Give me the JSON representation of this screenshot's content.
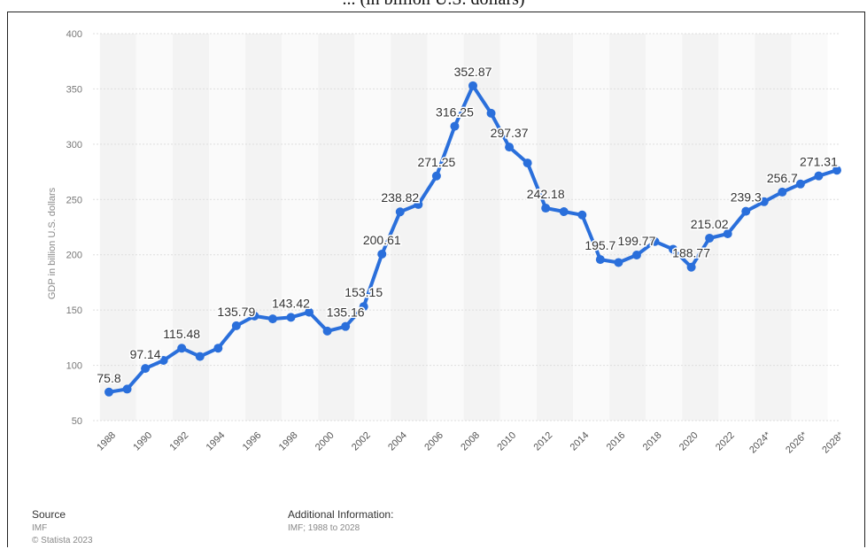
{
  "header": {
    "text": "... (in billion U.S. dollars)"
  },
  "chart_data": {
    "type": "line",
    "ylabel": "GDP in billion U.S. dollars",
    "ylim": [
      50,
      400
    ],
    "yticks": [
      50,
      100,
      150,
      200,
      250,
      300,
      350,
      400
    ],
    "grid": true,
    "x": [
      "1988",
      "1989",
      "1990",
      "1991",
      "1992",
      "1993",
      "1994",
      "1995",
      "1996",
      "1997",
      "1998",
      "1999",
      "2000",
      "2001",
      "2002",
      "2003",
      "2004",
      "2005",
      "2006",
      "2007",
      "2008",
      "2009",
      "2010",
      "2011",
      "2012",
      "2013",
      "2014",
      "2015",
      "2016",
      "2017",
      "2018",
      "2019",
      "2020",
      "2021",
      "2022",
      "2023",
      "2024*",
      "2025*",
      "2026*",
      "2027*",
      "2028*"
    ],
    "xtick_labels": [
      "1988",
      "1990",
      "1992",
      "1994",
      "1996",
      "1998",
      "2000",
      "2002",
      "2004",
      "2006",
      "2008",
      "2010",
      "2012",
      "2014",
      "2016",
      "2018",
      "2020",
      "2022",
      "2024*",
      "2026*",
      "2028*"
    ],
    "series": [
      {
        "values": [
          75.8,
          78.5,
          97.14,
          104.5,
          115.48,
          108.0,
          115.5,
          135.79,
          144.6,
          142.0,
          143.42,
          148.0,
          131.0,
          135.16,
          153.15,
          200.61,
          238.82,
          245.5,
          271.25,
          316.25,
          352.87,
          328.0,
          297.37,
          283.0,
          242.18,
          239.0,
          236.0,
          195.7,
          193.0,
          199.77,
          212.0,
          205.0,
          188.77,
          215.02,
          219.0,
          239.3,
          248.0,
          256.7,
          264.0,
          271.31,
          276.5
        ],
        "color": "#2a6fdb"
      }
    ],
    "data_labels": [
      {
        "i": 0,
        "text": "75.8"
      },
      {
        "i": 2,
        "text": "97.14"
      },
      {
        "i": 4,
        "text": "115.48"
      },
      {
        "i": 7,
        "text": "135.79"
      },
      {
        "i": 10,
        "text": "143.42"
      },
      {
        "i": 13,
        "text": "135.16"
      },
      {
        "i": 14,
        "text": "153.15"
      },
      {
        "i": 15,
        "text": "200.61"
      },
      {
        "i": 16,
        "text": "238.82"
      },
      {
        "i": 18,
        "text": "271.25"
      },
      {
        "i": 19,
        "text": "316.25"
      },
      {
        "i": 20,
        "text": "352.87"
      },
      {
        "i": 22,
        "text": "297.37"
      },
      {
        "i": 24,
        "text": "242.18"
      },
      {
        "i": 27,
        "text": "195.7"
      },
      {
        "i": 29,
        "text": "199.77"
      },
      {
        "i": 32,
        "text": "188.77"
      },
      {
        "i": 33,
        "text": "215.02"
      },
      {
        "i": 35,
        "text": "239.3"
      },
      {
        "i": 37,
        "text": "256.7"
      },
      {
        "i": 39,
        "text": "271.31"
      }
    ]
  },
  "footer": {
    "source_label": "Source",
    "source_value": "IMF",
    "copyright": "© Statista 2023",
    "info_label": "Additional Information:",
    "info_value": "IMF; 1988 to 2028"
  }
}
